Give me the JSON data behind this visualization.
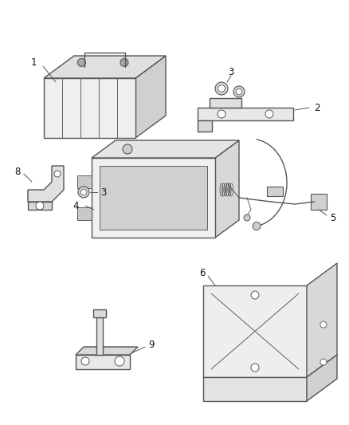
{
  "background_color": "#ffffff",
  "line_color": "#555555",
  "label_color": "#111111",
  "fig_width": 4.39,
  "fig_height": 5.33,
  "dpi": 100
}
